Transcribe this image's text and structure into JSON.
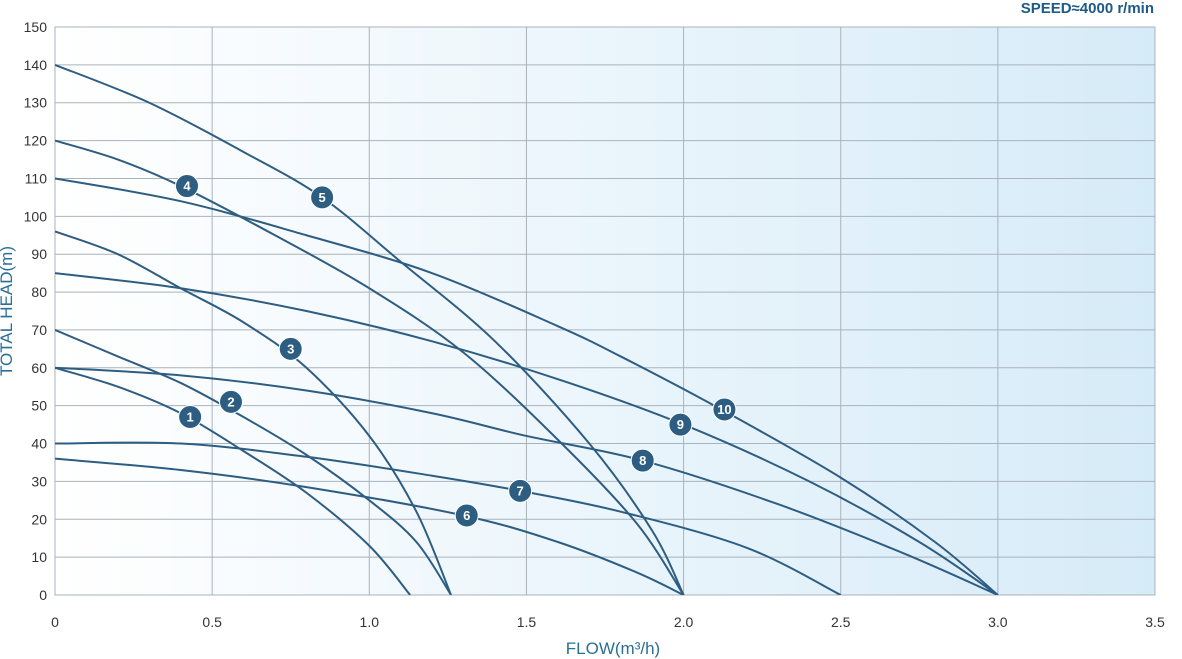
{
  "chart_data": {
    "type": "line",
    "xlabel": "FLOW(m³/h)",
    "ylabel": "TOTAL HEAD(m)",
    "speed_label": "SPEED≈4000 r/min",
    "xlim": [
      0,
      3.5
    ],
    "ylim": [
      0,
      150
    ],
    "x_ticks": [
      "0",
      "0.5",
      "1.0",
      "1.5",
      "2.0",
      "2.5",
      "3.0",
      "3.5"
    ],
    "y_ticks": [
      "0",
      "10",
      "20",
      "30",
      "40",
      "50",
      "60",
      "70",
      "80",
      "90",
      "100",
      "110",
      "120",
      "130",
      "140",
      "150"
    ],
    "grid": true,
    "colors": {
      "line": "#2e5d82",
      "marker": "#2e5d82",
      "grid": "#a9b3bc",
      "bg_start": "#ffffff",
      "bg_end": "#d6ebf8"
    },
    "series": [
      {
        "name": "1",
        "points": [
          [
            0,
            60
          ],
          [
            0.2,
            55
          ],
          [
            0.4,
            48
          ],
          [
            0.6,
            38
          ],
          [
            0.8,
            27
          ],
          [
            1.0,
            13
          ],
          [
            1.13,
            0
          ]
        ],
        "marker": [
          0.43,
          47
        ]
      },
      {
        "name": "2",
        "points": [
          [
            0,
            70
          ],
          [
            0.2,
            63
          ],
          [
            0.4,
            56
          ],
          [
            0.6,
            47
          ],
          [
            0.8,
            37
          ],
          [
            1.0,
            25
          ],
          [
            1.15,
            14
          ],
          [
            1.26,
            0
          ]
        ],
        "marker": [
          0.56,
          51
        ]
      },
      {
        "name": "3",
        "points": [
          [
            0,
            96
          ],
          [
            0.2,
            90
          ],
          [
            0.4,
            81
          ],
          [
            0.6,
            72
          ],
          [
            0.8,
            60
          ],
          [
            1.0,
            42
          ],
          [
            1.15,
            22
          ],
          [
            1.26,
            0
          ]
        ],
        "marker": [
          0.75,
          65
        ]
      },
      {
        "name": "4",
        "points": [
          [
            0,
            120
          ],
          [
            0.2,
            115
          ],
          [
            0.4,
            108
          ],
          [
            0.7,
            95
          ],
          [
            1.0,
            81
          ],
          [
            1.3,
            64
          ],
          [
            1.6,
            41
          ],
          [
            1.85,
            19
          ],
          [
            2.0,
            0
          ]
        ],
        "marker": [
          0.42,
          108
        ]
      },
      {
        "name": "5",
        "points": [
          [
            0,
            140
          ],
          [
            0.3,
            130
          ],
          [
            0.6,
            117
          ],
          [
            0.85,
            105
          ],
          [
            1.1,
            88
          ],
          [
            1.4,
            67
          ],
          [
            1.7,
            40
          ],
          [
            1.9,
            17
          ],
          [
            2.0,
            0
          ]
        ],
        "marker": [
          0.85,
          105
        ]
      },
      {
        "name": "6",
        "points": [
          [
            0,
            36
          ],
          [
            0.4,
            33
          ],
          [
            0.8,
            28.5
          ],
          [
            1.3,
            21
          ],
          [
            1.6,
            14
          ],
          [
            1.85,
            6
          ],
          [
            2.0,
            0
          ]
        ],
        "marker": [
          1.31,
          21
        ]
      },
      {
        "name": "7",
        "points": [
          [
            0,
            40
          ],
          [
            0.4,
            40
          ],
          [
            0.8,
            36.5
          ],
          [
            1.2,
            31.5
          ],
          [
            1.48,
            27.5
          ],
          [
            1.8,
            22
          ],
          [
            2.2,
            12.5
          ],
          [
            2.5,
            0
          ]
        ],
        "marker": [
          1.48,
          27.5
        ]
      },
      {
        "name": "8",
        "points": [
          [
            0,
            60
          ],
          [
            0.4,
            58
          ],
          [
            0.8,
            54
          ],
          [
            1.2,
            48
          ],
          [
            1.5,
            42
          ],
          [
            1.87,
            35.5
          ],
          [
            2.3,
            24
          ],
          [
            2.7,
            11
          ],
          [
            3.0,
            0
          ]
        ],
        "marker": [
          1.87,
          35.5
        ]
      },
      {
        "name": "9",
        "points": [
          [
            0,
            85
          ],
          [
            0.4,
            81
          ],
          [
            0.8,
            75
          ],
          [
            1.2,
            67
          ],
          [
            1.6,
            57
          ],
          [
            2.0,
            45
          ],
          [
            2.4,
            30
          ],
          [
            2.75,
            14
          ],
          [
            3.0,
            0
          ]
        ],
        "marker": [
          1.99,
          45
        ]
      },
      {
        "name": "10",
        "points": [
          [
            0,
            110
          ],
          [
            0.4,
            104
          ],
          [
            0.8,
            95
          ],
          [
            1.2,
            85
          ],
          [
            1.6,
            71
          ],
          [
            1.8,
            63
          ],
          [
            2.12,
            49
          ],
          [
            2.5,
            31
          ],
          [
            2.8,
            14
          ],
          [
            3.0,
            0
          ]
        ],
        "marker": [
          2.13,
          49
        ]
      }
    ]
  }
}
